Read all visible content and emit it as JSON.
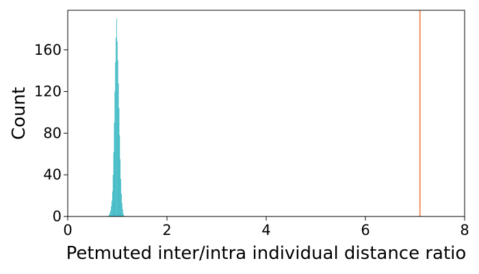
{
  "chart_data": {
    "type": "bar",
    "title": "",
    "xlabel": "Petmuted inter/intra individual distance ratio",
    "ylabel": "Count",
    "xlim": [
      0,
      8
    ],
    "ylim": [
      0,
      198
    ],
    "xticks": [
      0,
      2,
      4,
      6,
      8
    ],
    "yticks": [
      0,
      40,
      80,
      120,
      160
    ],
    "grid": false,
    "bin_width": 0.012,
    "bins": [
      {
        "x": 0.83,
        "count": 1
      },
      {
        "x": 0.842,
        "count": 2
      },
      {
        "x": 0.854,
        "count": 4
      },
      {
        "x": 0.866,
        "count": 6
      },
      {
        "x": 0.878,
        "count": 10
      },
      {
        "x": 0.89,
        "count": 15
      },
      {
        "x": 0.902,
        "count": 24
      },
      {
        "x": 0.914,
        "count": 40
      },
      {
        "x": 0.926,
        "count": 62
      },
      {
        "x": 0.938,
        "count": 90
      },
      {
        "x": 0.95,
        "count": 120
      },
      {
        "x": 0.962,
        "count": 148
      },
      {
        "x": 0.974,
        "count": 172
      },
      {
        "x": 0.986,
        "count": 190
      },
      {
        "x": 0.998,
        "count": 168
      },
      {
        "x": 1.01,
        "count": 150
      },
      {
        "x": 1.022,
        "count": 128
      },
      {
        "x": 1.034,
        "count": 104
      },
      {
        "x": 1.046,
        "count": 78
      },
      {
        "x": 1.058,
        "count": 55
      },
      {
        "x": 1.07,
        "count": 36
      },
      {
        "x": 1.082,
        "count": 22
      },
      {
        "x": 1.094,
        "count": 13
      },
      {
        "x": 1.106,
        "count": 7
      },
      {
        "x": 1.118,
        "count": 3
      },
      {
        "x": 1.13,
        "count": 1
      }
    ],
    "reference_line": {
      "x": 7.1
    },
    "colors": {
      "bars": "#3bb8c3",
      "reference_line": "#f4a582",
      "axes": "#000000"
    }
  }
}
